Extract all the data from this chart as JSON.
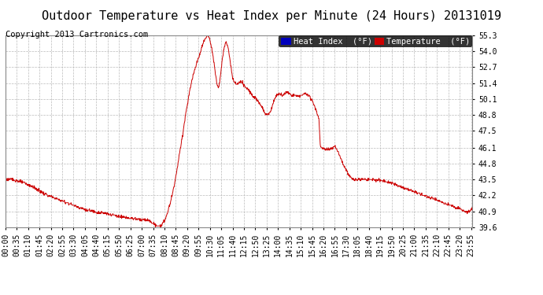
{
  "title": "Outdoor Temperature vs Heat Index per Minute (24 Hours) 20131019",
  "copyright": "Copyright 2013 Cartronics.com",
  "legend_items": [
    {
      "label": "Heat Index  (°F)",
      "bg_color": "#0000bb",
      "text_color": "#ffffff"
    },
    {
      "label": "Temperature  (°F)",
      "bg_color": "#cc0000",
      "text_color": "#ffffff"
    }
  ],
  "line_color": "#cc0000",
  "ylim": [
    39.6,
    55.3
  ],
  "yticks": [
    39.6,
    40.9,
    42.2,
    43.5,
    44.8,
    46.1,
    47.5,
    48.8,
    50.1,
    51.4,
    52.7,
    54.0,
    55.3
  ],
  "xtick_labels": [
    "00:00",
    "00:35",
    "01:10",
    "01:45",
    "02:20",
    "02:55",
    "03:30",
    "04:05",
    "04:40",
    "05:15",
    "05:50",
    "06:25",
    "07:00",
    "07:35",
    "08:10",
    "08:45",
    "09:20",
    "09:55",
    "10:30",
    "11:05",
    "11:40",
    "12:15",
    "12:50",
    "13:25",
    "14:00",
    "14:35",
    "15:10",
    "15:45",
    "16:20",
    "16:55",
    "17:30",
    "18:05",
    "18:40",
    "19:15",
    "19:50",
    "20:25",
    "21:00",
    "21:35",
    "22:10",
    "22:45",
    "23:20",
    "23:55"
  ],
  "background_color": "#ffffff",
  "grid_color": "#bbbbbb",
  "title_fontsize": 11,
  "copyright_fontsize": 7.5,
  "tick_fontsize": 7,
  "legend_fontsize": 7.5,
  "keypoints": [
    [
      0,
      43.5
    ],
    [
      10,
      43.5
    ],
    [
      20,
      43.5
    ],
    [
      35,
      43.4
    ],
    [
      50,
      43.3
    ],
    [
      70,
      43.1
    ],
    [
      90,
      42.8
    ],
    [
      110,
      42.5
    ],
    [
      130,
      42.2
    ],
    [
      150,
      42.0
    ],
    [
      170,
      41.8
    ],
    [
      190,
      41.6
    ],
    [
      210,
      41.4
    ],
    [
      230,
      41.2
    ],
    [
      250,
      41.0
    ],
    [
      270,
      40.9
    ],
    [
      290,
      40.8
    ],
    [
      310,
      40.7
    ],
    [
      330,
      40.6
    ],
    [
      350,
      40.5
    ],
    [
      370,
      40.4
    ],
    [
      390,
      40.3
    ],
    [
      410,
      40.25
    ],
    [
      430,
      40.2
    ],
    [
      445,
      40.1
    ],
    [
      455,
      39.9
    ],
    [
      462,
      39.75
    ],
    [
      468,
      39.65
    ],
    [
      472,
      39.62
    ],
    [
      478,
      39.75
    ],
    [
      485,
      39.9
    ],
    [
      492,
      40.2
    ],
    [
      500,
      40.8
    ],
    [
      510,
      41.8
    ],
    [
      520,
      43.0
    ],
    [
      530,
      44.5
    ],
    [
      540,
      46.2
    ],
    [
      548,
      47.5
    ],
    [
      555,
      48.8
    ],
    [
      562,
      49.8
    ],
    [
      568,
      50.8
    ],
    [
      574,
      51.5
    ],
    [
      580,
      52.2
    ],
    [
      586,
      52.7
    ],
    [
      592,
      53.2
    ],
    [
      598,
      53.7
    ],
    [
      604,
      54.2
    ],
    [
      610,
      54.7
    ],
    [
      615,
      55.0
    ],
    [
      620,
      55.2
    ],
    [
      624,
      55.3
    ],
    [
      628,
      55.1
    ],
    [
      632,
      54.7
    ],
    [
      636,
      54.2
    ],
    [
      640,
      53.5
    ],
    [
      644,
      52.8
    ],
    [
      648,
      52.0
    ],
    [
      652,
      51.3
    ],
    [
      656,
      51.0
    ],
    [
      660,
      51.5
    ],
    [
      664,
      52.3
    ],
    [
      668,
      53.2
    ],
    [
      672,
      54.0
    ],
    [
      676,
      54.5
    ],
    [
      680,
      54.7
    ],
    [
      684,
      54.5
    ],
    [
      688,
      54.0
    ],
    [
      692,
      53.3
    ],
    [
      696,
      52.5
    ],
    [
      700,
      51.8
    ],
    [
      706,
      51.4
    ],
    [
      712,
      51.3
    ],
    [
      718,
      51.4
    ],
    [
      724,
      51.5
    ],
    [
      730,
      51.4
    ],
    [
      736,
      51.2
    ],
    [
      742,
      51.0
    ],
    [
      750,
      50.8
    ],
    [
      758,
      50.5
    ],
    [
      766,
      50.3
    ],
    [
      774,
      50.1
    ],
    [
      782,
      49.8
    ],
    [
      790,
      49.5
    ],
    [
      798,
      49.0
    ],
    [
      806,
      48.8
    ],
    [
      810,
      48.8
    ],
    [
      816,
      49.0
    ],
    [
      822,
      49.5
    ],
    [
      828,
      50.0
    ],
    [
      834,
      50.3
    ],
    [
      840,
      50.5
    ],
    [
      846,
      50.5
    ],
    [
      852,
      50.4
    ],
    [
      858,
      50.5
    ],
    [
      864,
      50.6
    ],
    [
      870,
      50.6
    ],
    [
      876,
      50.5
    ],
    [
      882,
      50.4
    ],
    [
      888,
      50.4
    ],
    [
      894,
      50.4
    ],
    [
      900,
      50.3
    ],
    [
      910,
      50.4
    ],
    [
      920,
      50.5
    ],
    [
      928,
      50.5
    ],
    [
      935,
      50.4
    ],
    [
      940,
      50.2
    ],
    [
      948,
      49.8
    ],
    [
      956,
      49.3
    ],
    [
      962,
      48.8
    ],
    [
      966,
      48.5
    ],
    [
      970,
      46.3
    ],
    [
      974,
      46.1
    ],
    [
      980,
      46.0
    ],
    [
      990,
      46.0
    ],
    [
      1000,
      46.0
    ],
    [
      1008,
      46.1
    ],
    [
      1012,
      46.2
    ],
    [
      1016,
      46.2
    ],
    [
      1020,
      46.0
    ],
    [
      1026,
      45.7
    ],
    [
      1032,
      45.3
    ],
    [
      1040,
      44.8
    ],
    [
      1050,
      44.3
    ],
    [
      1060,
      43.8
    ],
    [
      1070,
      43.5
    ],
    [
      1085,
      43.5
    ],
    [
      1100,
      43.5
    ],
    [
      1120,
      43.5
    ],
    [
      1140,
      43.5
    ],
    [
      1160,
      43.4
    ],
    [
      1180,
      43.3
    ],
    [
      1200,
      43.1
    ],
    [
      1220,
      42.9
    ],
    [
      1240,
      42.7
    ],
    [
      1260,
      42.5
    ],
    [
      1280,
      42.3
    ],
    [
      1300,
      42.1
    ],
    [
      1320,
      41.9
    ],
    [
      1340,
      41.7
    ],
    [
      1360,
      41.5
    ],
    [
      1380,
      41.3
    ],
    [
      1400,
      41.1
    ],
    [
      1415,
      40.9
    ],
    [
      1425,
      40.8
    ],
    [
      1435,
      41.0
    ],
    [
      1439,
      41.2
    ]
  ]
}
